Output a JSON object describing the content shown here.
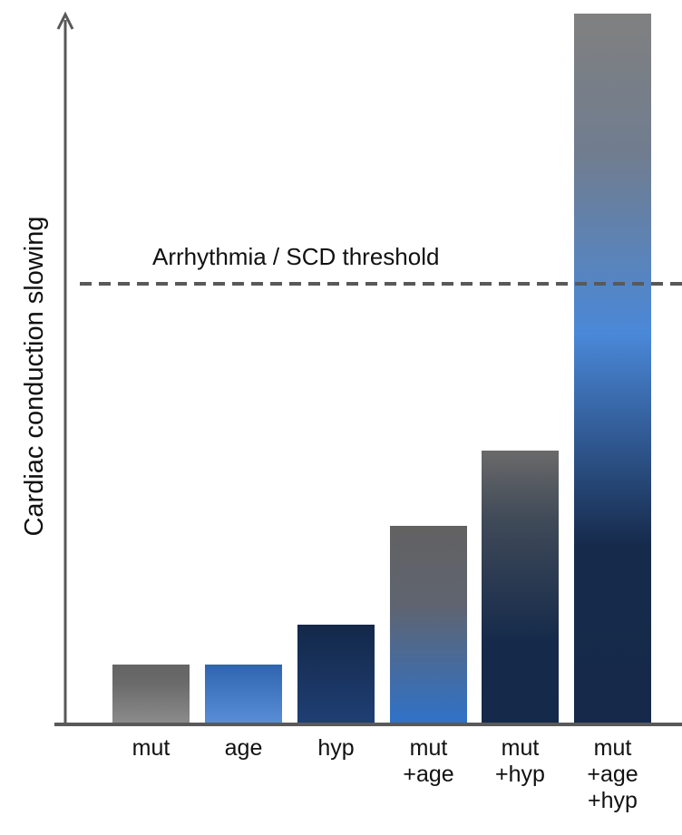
{
  "chart_data": {
    "type": "bar",
    "title": "",
    "xlabel": "",
    "ylabel": "Cardiac conduction slowing",
    "categories": [
      [
        "mut"
      ],
      [
        "age"
      ],
      [
        "hyp"
      ],
      [
        "mut",
        "+age"
      ],
      [
        "mut",
        "+hyp"
      ],
      [
        "mut",
        "+age",
        "+hyp"
      ]
    ],
    "values": [
      6.6,
      6.6,
      11,
      21.9,
      30.2,
      78.4
    ],
    "ylim": [
      0,
      78.4
    ],
    "y_ticks": "none (arbitrary units, arrow axis)",
    "grid": false,
    "threshold": {
      "label": "Arrhythmia / SCD threshold",
      "value": 48.6,
      "style": "dashed",
      "color": "#595959"
    },
    "bar_gradients": [
      [
        [
          "0",
          "#646464"
        ],
        [
          "0.3",
          "#6a6a6a"
        ],
        [
          "1",
          "#8c8c8c"
        ]
      ],
      [
        [
          "0",
          "#2e65ae"
        ],
        [
          "1",
          "#5a8fd8"
        ]
      ],
      [
        [
          "0",
          "#132849"
        ],
        [
          "1",
          "#1f3f74"
        ]
      ],
      [
        [
          "0",
          "#626262"
        ],
        [
          "0.4",
          "#5f6470"
        ],
        [
          "1",
          "#2f72c9"
        ]
      ],
      [
        [
          "0",
          "#6a6a6a"
        ],
        [
          "0.25",
          "#404a58"
        ],
        [
          "0.7",
          "#152a4b"
        ],
        [
          "1",
          "#15294a"
        ]
      ],
      [
        [
          "0",
          "#808080"
        ],
        [
          "0.2",
          "#707d90"
        ],
        [
          "0.45",
          "#4a88d8"
        ],
        [
          "0.75",
          "#162a4b"
        ],
        [
          "1",
          "#16294a"
        ]
      ]
    ],
    "axis_color": "#595959"
  }
}
